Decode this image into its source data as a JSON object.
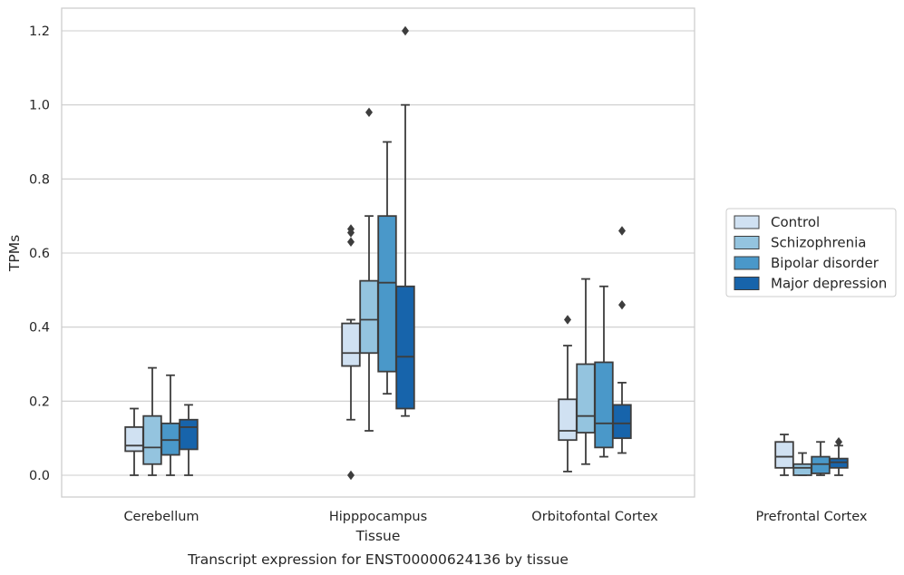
{
  "chart_data": {
    "type": "boxplot",
    "title": "Transcript expression for ENST00000624136 by tissue",
    "xlabel": "Tissue",
    "ylabel": "TPMs",
    "ylim": [
      -0.06,
      1.26
    ],
    "yticks": [
      0.0,
      0.2,
      0.4,
      0.6,
      0.8,
      1.0,
      1.2
    ],
    "ytick_labels": [
      "0.0",
      "0.2",
      "0.4",
      "0.6",
      "0.8",
      "1.0",
      "1.2"
    ],
    "grid": true,
    "legend_position": "right",
    "categories": [
      "Cerebellum",
      "Hipppocampus",
      "Orbitofontal Cortex",
      "Prefrontal Cortex"
    ],
    "series": [
      {
        "name": "Control",
        "color": "#d0e1f2",
        "boxes": [
          {
            "whislo": 0.0,
            "q1": 0.065,
            "med": 0.08,
            "q3": 0.13,
            "whishi": 0.18,
            "fliers": []
          },
          {
            "whislo": 0.15,
            "q1": 0.295,
            "med": 0.33,
            "q3": 0.41,
            "whishi": 0.42,
            "fliers": [
              0.0,
              0.63,
              0.655,
              0.665
            ]
          },
          {
            "whislo": 0.01,
            "q1": 0.095,
            "med": 0.12,
            "q3": 0.205,
            "whishi": 0.35,
            "fliers": [
              0.42
            ]
          },
          {
            "whislo": 0.0,
            "q1": 0.02,
            "med": 0.05,
            "q3": 0.09,
            "whishi": 0.11,
            "fliers": []
          }
        ]
      },
      {
        "name": "Schizophrenia",
        "color": "#94c4df",
        "boxes": [
          {
            "whislo": 0.0,
            "q1": 0.03,
            "med": 0.075,
            "q3": 0.16,
            "whishi": 0.29,
            "fliers": []
          },
          {
            "whislo": 0.12,
            "q1": 0.33,
            "med": 0.42,
            "q3": 0.525,
            "whishi": 0.7,
            "fliers": [
              0.98
            ]
          },
          {
            "whislo": 0.03,
            "q1": 0.115,
            "med": 0.16,
            "q3": 0.3,
            "whishi": 0.53,
            "fliers": []
          },
          {
            "whislo": 0.0,
            "q1": 0.0,
            "med": 0.02,
            "q3": 0.03,
            "whishi": 0.06,
            "fliers": []
          }
        ]
      },
      {
        "name": "Bipolar disorder",
        "color": "#4a98c9",
        "boxes": [
          {
            "whislo": 0.0,
            "q1": 0.055,
            "med": 0.095,
            "q3": 0.14,
            "whishi": 0.27,
            "fliers": []
          },
          {
            "whislo": 0.22,
            "q1": 0.28,
            "med": 0.52,
            "q3": 0.7,
            "whishi": 0.9,
            "fliers": []
          },
          {
            "whislo": 0.05,
            "q1": 0.075,
            "med": 0.14,
            "q3": 0.305,
            "whishi": 0.51,
            "fliers": []
          },
          {
            "whislo": 0.0,
            "q1": 0.005,
            "med": 0.03,
            "q3": 0.05,
            "whishi": 0.09,
            "fliers": []
          }
        ]
      },
      {
        "name": "Major depression",
        "color": "#1764ab",
        "boxes": [
          {
            "whislo": 0.0,
            "q1": 0.07,
            "med": 0.13,
            "q3": 0.15,
            "whishi": 0.19,
            "fliers": []
          },
          {
            "whislo": 0.16,
            "q1": 0.18,
            "med": 0.32,
            "q3": 0.51,
            "whishi": 1.0,
            "fliers": [
              1.2
            ]
          },
          {
            "whislo": 0.06,
            "q1": 0.1,
            "med": 0.14,
            "q3": 0.19,
            "whishi": 0.25,
            "fliers": [
              0.46,
              0.66
            ]
          },
          {
            "whislo": 0.0,
            "q1": 0.02,
            "med": 0.035,
            "q3": 0.045,
            "whishi": 0.08,
            "fliers": [
              0.09
            ]
          }
        ]
      }
    ]
  }
}
